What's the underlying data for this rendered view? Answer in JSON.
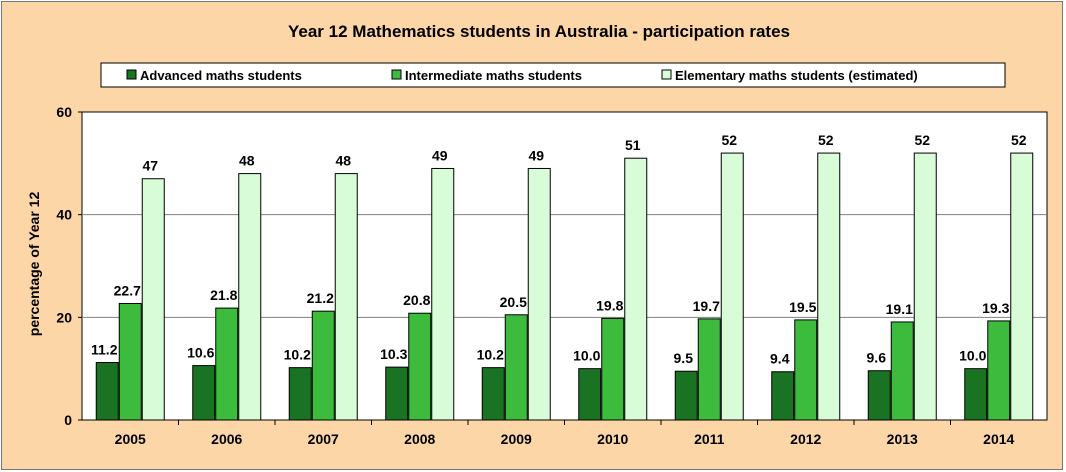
{
  "chart_data": {
    "type": "bar",
    "title": "Year 12 Mathematics students in Australia - participation rates",
    "xlabel": "",
    "ylabel": "percentage of Year 12",
    "ylim": [
      0,
      60
    ],
    "yticks": [
      0,
      20,
      40,
      60
    ],
    "grid": true,
    "legend_position": "top",
    "categories": [
      "2005",
      "2006",
      "2007",
      "2008",
      "2009",
      "2010",
      "2011",
      "2012",
      "2013",
      "2014"
    ],
    "series": [
      {
        "name": "Advanced maths students",
        "color": "#1a7322",
        "values": [
          11.2,
          10.6,
          10.2,
          10.3,
          10.2,
          10.0,
          9.5,
          9.4,
          9.6,
          10.0
        ],
        "labels": [
          "11.2",
          "10.6",
          "10.2",
          "10.3",
          "10.2",
          "10.0",
          "9.5",
          "9.4",
          "9.6",
          "10.0"
        ]
      },
      {
        "name": "Intermediate maths students",
        "color": "#3cbb3c",
        "values": [
          22.7,
          21.8,
          21.2,
          20.8,
          20.5,
          19.8,
          19.7,
          19.5,
          19.1,
          19.3
        ],
        "labels": [
          "22.7",
          "21.8",
          "21.2",
          "20.8",
          "20.5",
          "19.8",
          "19.7",
          "19.5",
          "19.1",
          "19.3"
        ]
      },
      {
        "name": "Elementary maths students (estimated)",
        "color": "#d8fbd8",
        "values": [
          47,
          48,
          48,
          49,
          49,
          51,
          52,
          52,
          52,
          52
        ],
        "labels": [
          "47",
          "48",
          "48",
          "49",
          "49",
          "51",
          "52",
          "52",
          "52",
          "52"
        ]
      }
    ]
  },
  "colors": {
    "chart_background": "#fcd6a7",
    "plot_background": "#ffffff",
    "gridline": "#808080",
    "bar_outline": "#000000"
  }
}
